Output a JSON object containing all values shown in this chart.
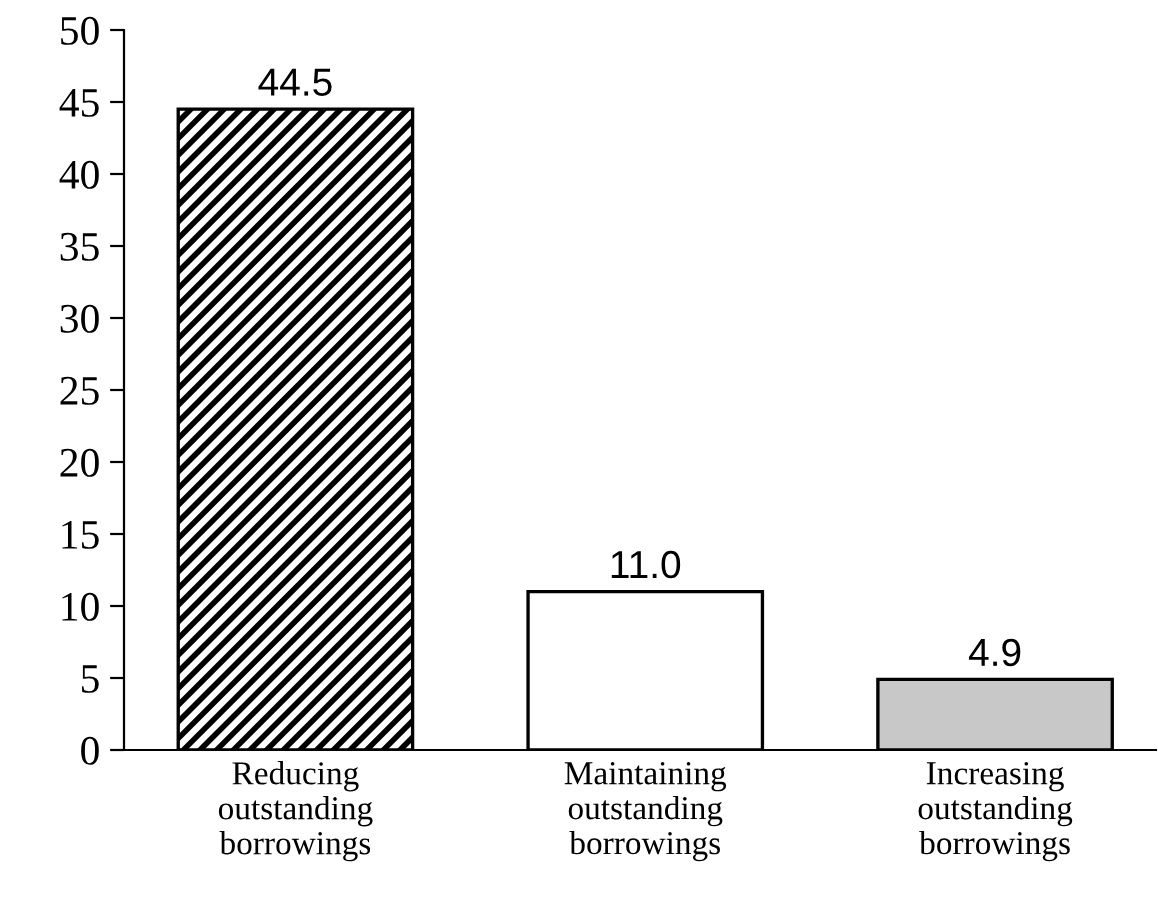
{
  "chart_data": {
    "type": "bar",
    "categories": [
      "Reducing\noutstanding\nborrowings",
      "Maintaining\noutstanding\nborrowings",
      "Increasing\noutstanding\nborrowings"
    ],
    "values": [
      44.5,
      11.0,
      4.9
    ],
    "value_labels": [
      "44.5",
      "11.0",
      "4.9"
    ],
    "colors": [
      "#000000",
      "#ffffff",
      "#c8c8c8"
    ],
    "ylim": [
      0,
      50
    ],
    "yticks": [
      0,
      5,
      10,
      15,
      20,
      25,
      30,
      35,
      40,
      45,
      50
    ],
    "grid": false,
    "legend": false
  }
}
